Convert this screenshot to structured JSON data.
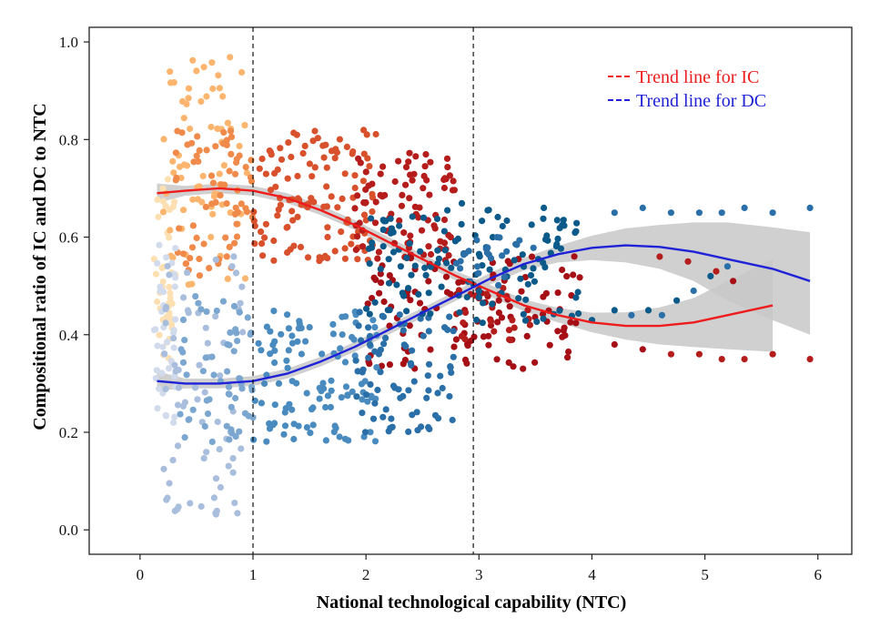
{
  "chart_data": {
    "type": "scatter",
    "title": "",
    "xlabel": "National technological capability (NTC)",
    "ylabel": "Compositional ratio of IC and DC to NTC",
    "xlim": [
      -0.45,
      6.3
    ],
    "ylim": [
      -0.05,
      1.03
    ],
    "x_ticks": [
      "0",
      "1",
      "2",
      "3",
      "4",
      "5",
      "6"
    ],
    "y_ticks": [
      "0.0",
      "0.2",
      "0.4",
      "0.6",
      "0.8",
      "1.0"
    ],
    "grid": false,
    "legend_position": "top-right",
    "reference_lines_x": [
      1.0,
      2.95
    ],
    "colors": {
      "ic_trend": "#ee1c1c",
      "dc_trend": "#1f22d6",
      "confidence_band": "#c8c8c8",
      "ic_points": [
        "#fde0b2",
        "#fbb56e",
        "#f08a4b",
        "#d8512c",
        "#b51c1c",
        "#a50f15"
      ],
      "dc_points": [
        "#d2dbec",
        "#a9bedd",
        "#7ba6cf",
        "#4a8bbf",
        "#2a6fa8",
        "#0b5a8a"
      ]
    },
    "series": [
      {
        "name": "Trend line for IC",
        "style": "solid",
        "x": [
          0.15,
          0.4,
          0.7,
          1.0,
          1.3,
          1.6,
          1.9,
          2.2,
          2.5,
          2.8,
          3.1,
          3.4,
          3.7,
          4.0,
          4.3,
          4.6,
          4.9,
          5.2,
          5.6
        ],
        "y": [
          0.69,
          0.695,
          0.7,
          0.695,
          0.68,
          0.655,
          0.625,
          0.59,
          0.555,
          0.52,
          0.49,
          0.46,
          0.44,
          0.425,
          0.418,
          0.418,
          0.425,
          0.44,
          0.46
        ],
        "band_lower": [
          0.67,
          0.685,
          0.69,
          0.685,
          0.67,
          0.645,
          0.615,
          0.58,
          0.545,
          0.51,
          0.478,
          0.448,
          0.425,
          0.405,
          0.39,
          0.38,
          0.375,
          0.37,
          0.365
        ],
        "band_upper": [
          0.71,
          0.705,
          0.71,
          0.705,
          0.69,
          0.665,
          0.635,
          0.6,
          0.565,
          0.53,
          0.502,
          0.472,
          0.455,
          0.445,
          0.446,
          0.456,
          0.475,
          0.51,
          0.555
        ]
      },
      {
        "name": "Trend line for DC",
        "style": "solid",
        "x": [
          0.15,
          0.4,
          0.7,
          1.0,
          1.3,
          1.6,
          1.9,
          2.2,
          2.5,
          2.8,
          3.1,
          3.4,
          3.7,
          4.0,
          4.3,
          4.6,
          4.9,
          5.2,
          5.6,
          5.93
        ],
        "y": [
          0.305,
          0.3,
          0.3,
          0.305,
          0.32,
          0.345,
          0.375,
          0.41,
          0.445,
          0.48,
          0.515,
          0.545,
          0.565,
          0.578,
          0.583,
          0.58,
          0.57,
          0.555,
          0.535,
          0.51
        ],
        "band_lower": [
          0.285,
          0.29,
          0.29,
          0.295,
          0.31,
          0.335,
          0.365,
          0.4,
          0.435,
          0.47,
          0.503,
          0.532,
          0.548,
          0.553,
          0.548,
          0.535,
          0.51,
          0.47,
          0.43,
          0.4
        ],
        "band_upper": [
          0.325,
          0.31,
          0.31,
          0.315,
          0.33,
          0.355,
          0.385,
          0.42,
          0.455,
          0.49,
          0.527,
          0.558,
          0.582,
          0.603,
          0.618,
          0.625,
          0.63,
          0.63,
          0.62,
          0.61
        ]
      }
    ],
    "clusters": [
      {
        "group": "IC",
        "shade": 0,
        "n": 40,
        "x": [
          0.12,
          0.32
        ],
        "y": [
          0.35,
          0.72
        ]
      },
      {
        "group": "IC",
        "shade": 1,
        "n": 70,
        "x": [
          0.2,
          0.95
        ],
        "y": [
          0.5,
          0.97
        ]
      },
      {
        "group": "IC",
        "shade": 2,
        "n": 70,
        "x": [
          0.3,
          1.0
        ],
        "y": [
          0.52,
          0.82
        ]
      },
      {
        "group": "IC",
        "shade": 3,
        "n": 120,
        "x": [
          1.0,
          2.1
        ],
        "y": [
          0.55,
          0.82
        ]
      },
      {
        "group": "IC",
        "shade": 4,
        "n": 90,
        "x": [
          1.9,
          2.8
        ],
        "y": [
          0.55,
          0.78
        ]
      },
      {
        "group": "IC",
        "shade": 5,
        "n": 120,
        "x": [
          2.0,
          3.9
        ],
        "y": [
          0.33,
          0.57
        ]
      },
      {
        "group": "IC",
        "shade": 4,
        "n": 25,
        "x": [
          2.8,
          3.5
        ],
        "y": [
          0.38,
          0.5
        ]
      },
      {
        "group": "DC",
        "shade": 0,
        "n": 40,
        "x": [
          0.12,
          0.32
        ],
        "y": [
          0.2,
          0.6
        ]
      },
      {
        "group": "DC",
        "shade": 1,
        "n": 70,
        "x": [
          0.2,
          0.95
        ],
        "y": [
          0.03,
          0.57
        ]
      },
      {
        "group": "DC",
        "shade": 2,
        "n": 60,
        "x": [
          0.3,
          1.0
        ],
        "y": [
          0.18,
          0.48
        ]
      },
      {
        "group": "DC",
        "shade": 3,
        "n": 110,
        "x": [
          1.0,
          2.1
        ],
        "y": [
          0.18,
          0.45
        ]
      },
      {
        "group": "DC",
        "shade": 4,
        "n": 80,
        "x": [
          1.9,
          2.8
        ],
        "y": [
          0.2,
          0.45
        ]
      },
      {
        "group": "DC",
        "shade": 5,
        "n": 130,
        "x": [
          2.0,
          3.9
        ],
        "y": [
          0.42,
          0.67
        ]
      },
      {
        "group": "DC",
        "shade": 4,
        "n": 25,
        "x": [
          2.8,
          3.5
        ],
        "y": [
          0.5,
          0.6
        ]
      }
    ],
    "sparse_points": [
      {
        "group": "DC",
        "shade": 5,
        "x": 4.0,
        "y": 0.43
      },
      {
        "group": "DC",
        "shade": 5,
        "x": 4.2,
        "y": 0.45
      },
      {
        "group": "DC",
        "shade": 4,
        "x": 4.35,
        "y": 0.44
      },
      {
        "group": "DC",
        "shade": 5,
        "x": 4.5,
        "y": 0.45
      },
      {
        "group": "DC",
        "shade": 4,
        "x": 4.62,
        "y": 0.44
      },
      {
        "group": "DC",
        "shade": 5,
        "x": 4.75,
        "y": 0.47
      },
      {
        "group": "DC",
        "shade": 4,
        "x": 4.9,
        "y": 0.49
      },
      {
        "group": "DC",
        "shade": 5,
        "x": 5.05,
        "y": 0.52
      },
      {
        "group": "DC",
        "shade": 4,
        "x": 5.2,
        "y": 0.54
      },
      {
        "group": "DC",
        "shade": 4,
        "x": 4.2,
        "y": 0.65
      },
      {
        "group": "DC",
        "shade": 4,
        "x": 4.45,
        "y": 0.66
      },
      {
        "group": "DC",
        "shade": 4,
        "x": 4.7,
        "y": 0.65
      },
      {
        "group": "DC",
        "shade": 4,
        "x": 4.95,
        "y": 0.65
      },
      {
        "group": "DC",
        "shade": 4,
        "x": 5.15,
        "y": 0.65
      },
      {
        "group": "DC",
        "shade": 4,
        "x": 5.35,
        "y": 0.66
      },
      {
        "group": "DC",
        "shade": 4,
        "x": 5.6,
        "y": 0.65
      },
      {
        "group": "DC",
        "shade": 4,
        "x": 5.93,
        "y": 0.66
      },
      {
        "group": "IC",
        "shade": 5,
        "x": 4.2,
        "y": 0.38
      },
      {
        "group": "IC",
        "shade": 5,
        "x": 4.45,
        "y": 0.37
      },
      {
        "group": "IC",
        "shade": 4,
        "x": 4.7,
        "y": 0.36
      },
      {
        "group": "IC",
        "shade": 4,
        "x": 4.95,
        "y": 0.36
      },
      {
        "group": "IC",
        "shade": 4,
        "x": 5.15,
        "y": 0.35
      },
      {
        "group": "IC",
        "shade": 4,
        "x": 5.35,
        "y": 0.35
      },
      {
        "group": "IC",
        "shade": 4,
        "x": 5.6,
        "y": 0.36
      },
      {
        "group": "IC",
        "shade": 4,
        "x": 5.93,
        "y": 0.35
      },
      {
        "group": "IC",
        "shade": 4,
        "x": 4.6,
        "y": 0.56
      },
      {
        "group": "IC",
        "shade": 4,
        "x": 4.85,
        "y": 0.55
      },
      {
        "group": "IC",
        "shade": 4,
        "x": 5.1,
        "y": 0.53
      },
      {
        "group": "IC",
        "shade": 5,
        "x": 5.25,
        "y": 0.51
      }
    ]
  }
}
